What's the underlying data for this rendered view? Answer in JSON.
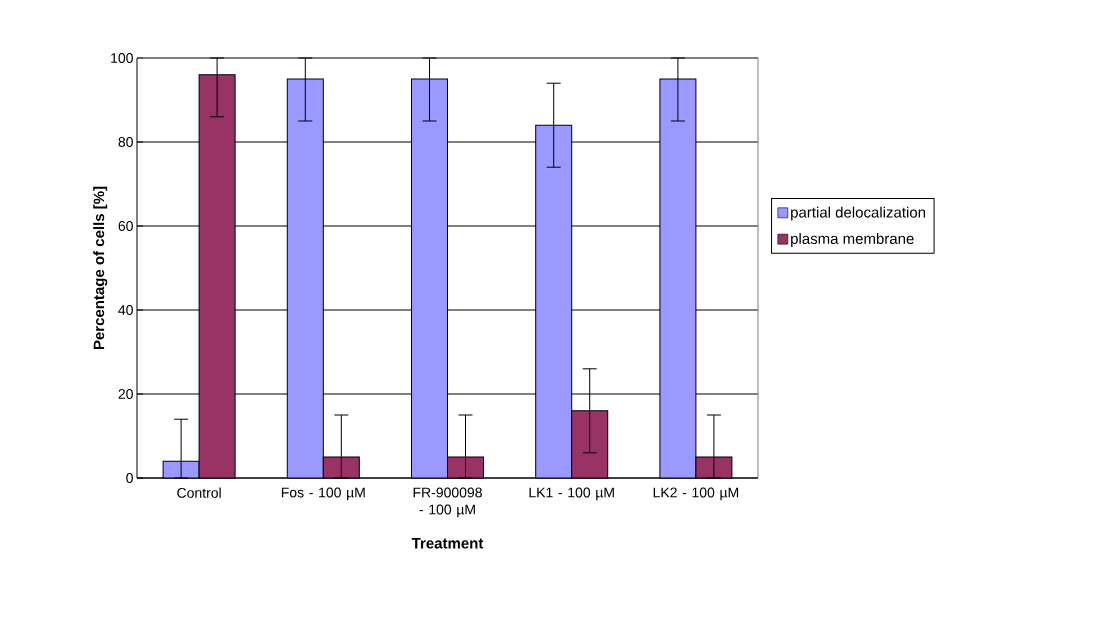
{
  "chart_data": {
    "type": "bar",
    "xlabel": "Treatment",
    "ylabel": "Percentage of cells [%]",
    "categories": [
      "Control",
      "Fos - 100 µM",
      "FR-900098 - 100 µM",
      "LK1 - 100 µM",
      "LK2 - 100 µM"
    ],
    "series": [
      {
        "name": "partial delocalization",
        "color": "#9999ff",
        "values": [
          4,
          95,
          95,
          84,
          95
        ],
        "errors": [
          [
            0,
            14
          ],
          [
            85,
            100
          ],
          [
            85,
            100
          ],
          10,
          [
            85,
            100
          ]
        ]
      },
      {
        "name": "plasma membrane",
        "color": "#993366",
        "values": [
          96,
          5,
          5,
          16,
          5
        ],
        "errors": [
          [
            86,
            100
          ],
          [
            0,
            15
          ],
          [
            0,
            15
          ],
          10,
          [
            0,
            15
          ]
        ]
      }
    ],
    "ylim": [
      0,
      100
    ],
    "yticks": [
      0,
      20,
      40,
      60,
      80,
      100
    ],
    "grid": "y",
    "legend": "right"
  }
}
